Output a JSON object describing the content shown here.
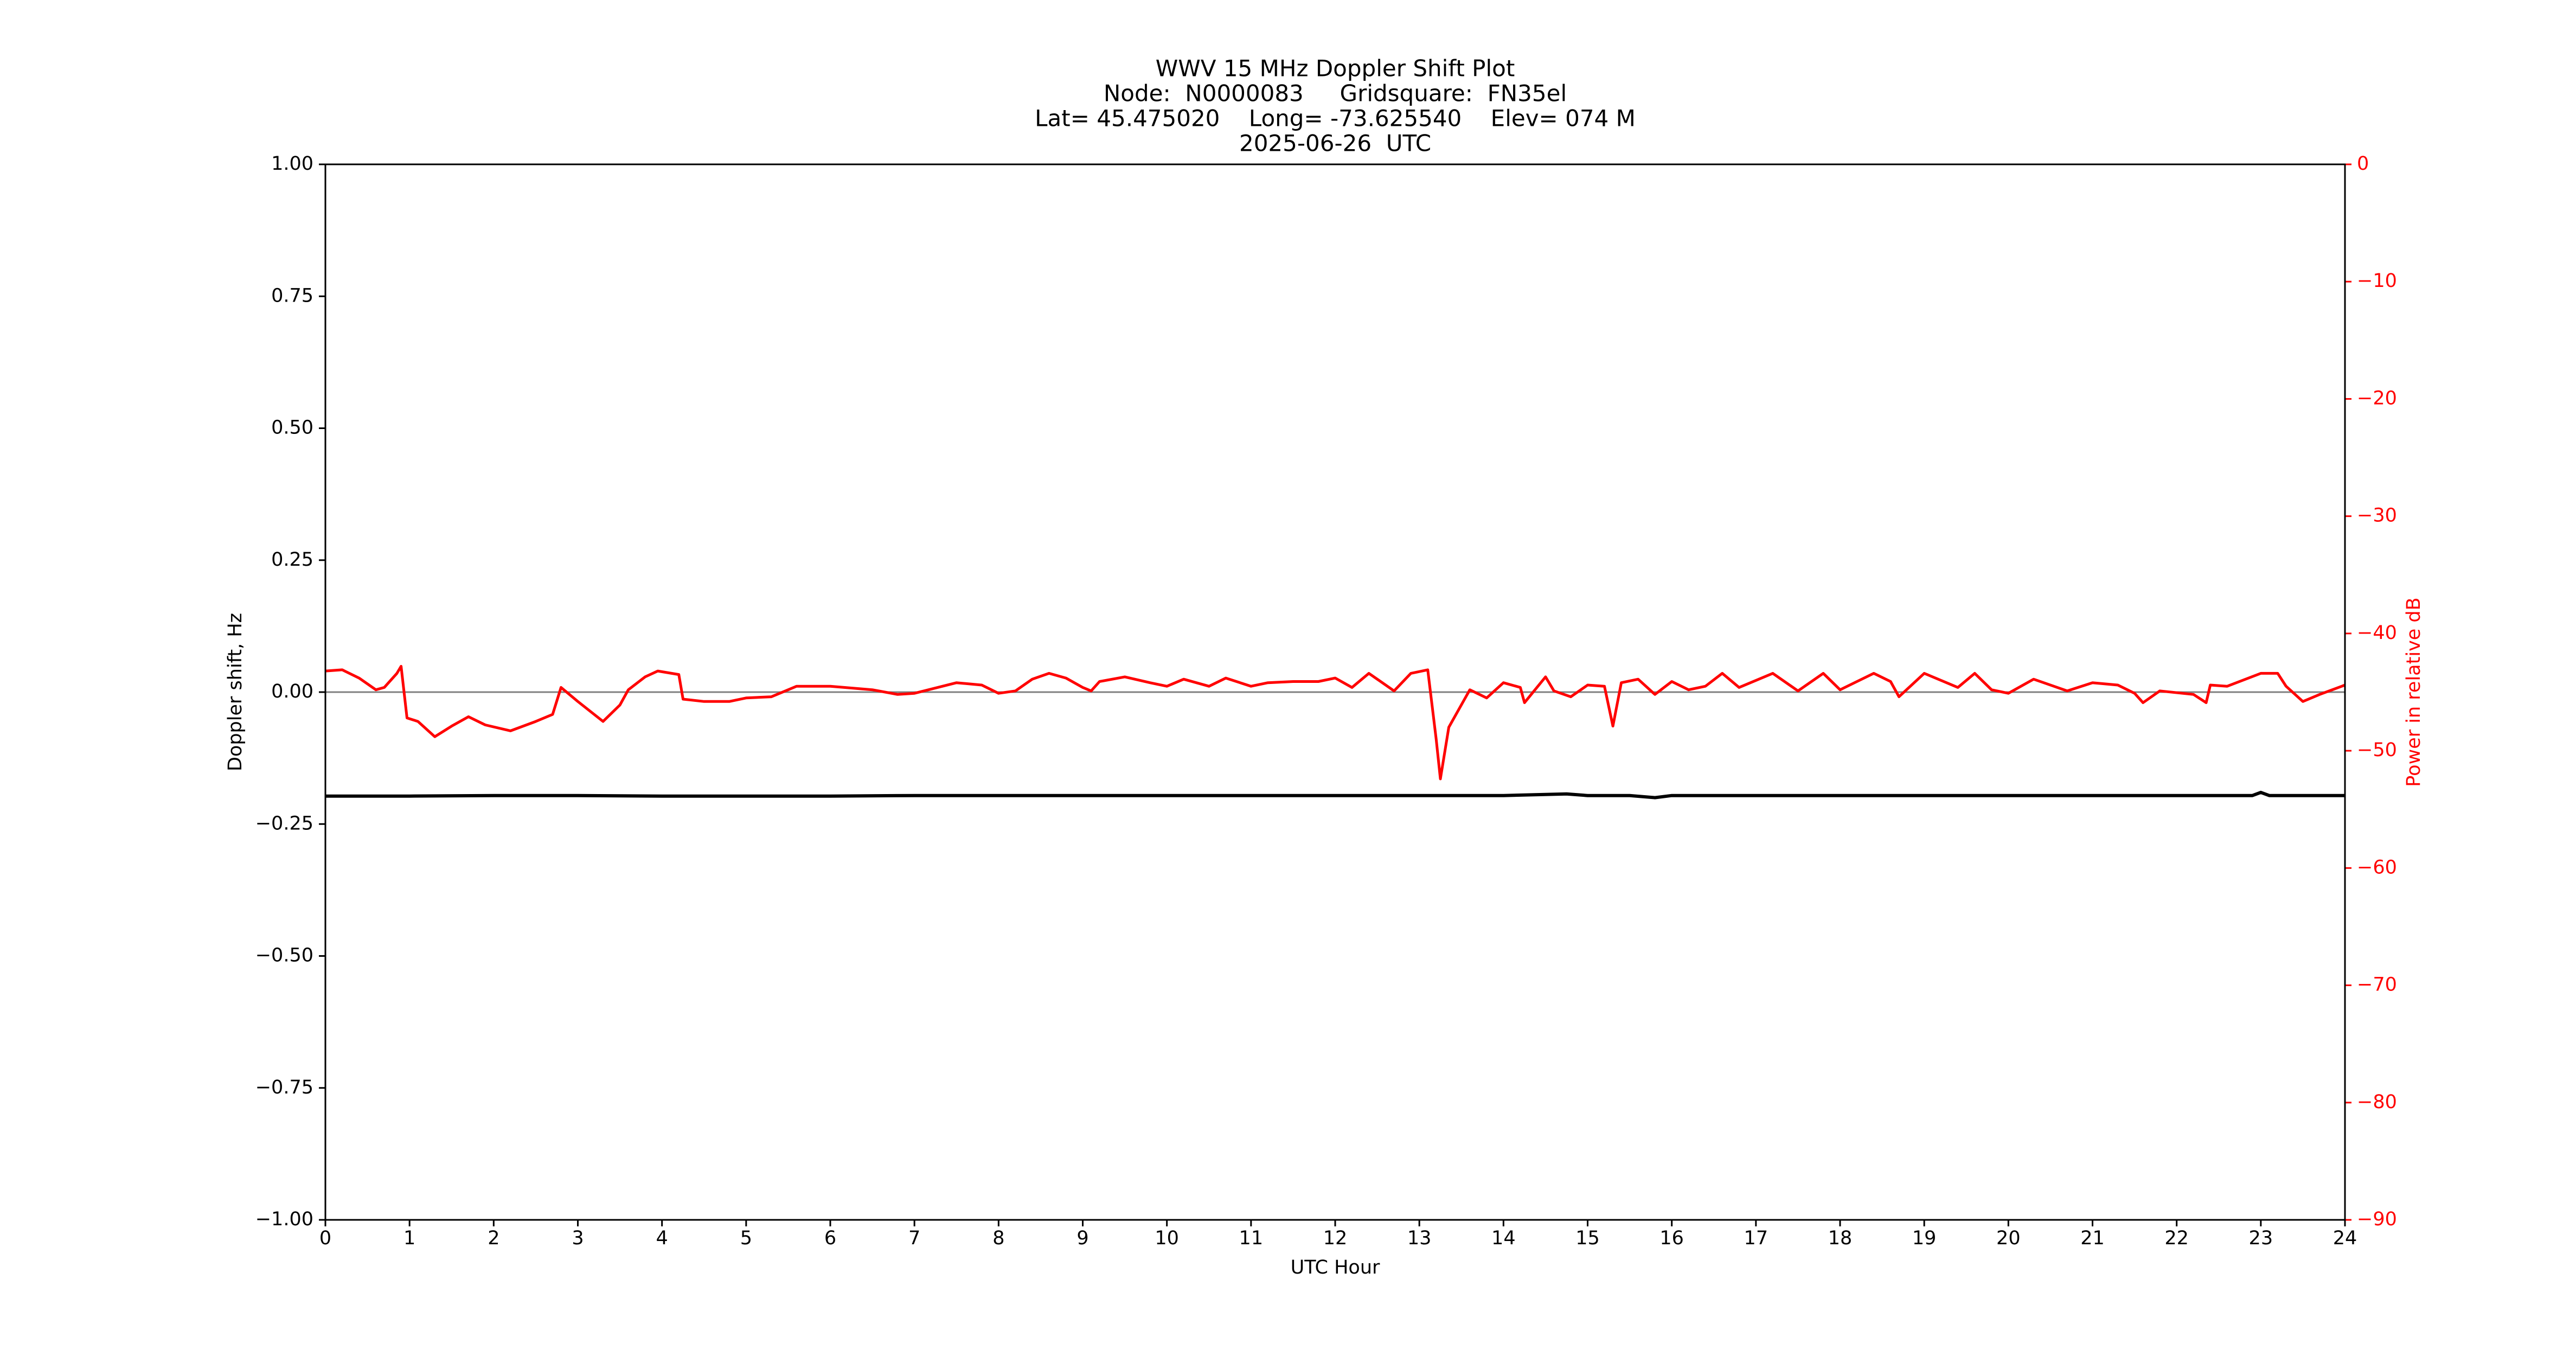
{
  "chart_data": {
    "type": "line",
    "title": [
      "WWV 15 MHz Doppler Shift Plot",
      "Node:  N0000083     Gridsquare:  FN35el",
      "Lat= 45.475020    Long= -73.625540    Elev= 074 M",
      "2025-06-26  UTC"
    ],
    "xlabel": "UTC Hour",
    "ylabel": "Doppler shift, Hz",
    "y2label": "Power in relative dB",
    "xlim": [
      0,
      24
    ],
    "xticks": [
      0,
      1,
      2,
      3,
      4,
      5,
      6,
      7,
      8,
      9,
      10,
      11,
      12,
      13,
      14,
      15,
      16,
      17,
      18,
      19,
      20,
      21,
      22,
      23,
      24
    ],
    "ylim": [
      -1,
      1
    ],
    "yticks": [
      {
        "value": -1,
        "label": "−1.00"
      },
      {
        "value": -0.75,
        "label": "−0.75"
      },
      {
        "value": -0.5,
        "label": "−0.50"
      },
      {
        "value": -0.25,
        "label": "−0.25"
      },
      {
        "value": 0,
        "label": "0.00"
      },
      {
        "value": 0.25,
        "label": "0.25"
      },
      {
        "value": 0.5,
        "label": "0.50"
      },
      {
        "value": 0.75,
        "label": "0.75"
      },
      {
        "value": 1,
        "label": "1.00"
      }
    ],
    "y2lim": [
      -90,
      0
    ],
    "y2ticks": [
      {
        "value": -90,
        "label": "−90"
      },
      {
        "value": -80,
        "label": "−80"
      },
      {
        "value": -70,
        "label": "−70"
      },
      {
        "value": -60,
        "label": "−60"
      },
      {
        "value": -50,
        "label": "−50"
      },
      {
        "value": -40,
        "label": "−40"
      },
      {
        "value": -30,
        "label": "−30"
      },
      {
        "value": -20,
        "label": "−20"
      },
      {
        "value": -10,
        "label": "−10"
      },
      0
    ],
    "y2color": "#ff0000",
    "hline": {
      "value": 0,
      "color": "#808080"
    },
    "series": [
      {
        "name": "Doppler shift",
        "color": "#000000",
        "x": [
          0,
          1,
          2,
          3,
          4,
          5,
          6,
          7,
          8,
          9,
          10,
          11,
          12,
          13,
          14,
          14.75,
          15,
          15.5,
          15.8,
          16,
          17,
          18,
          19,
          20,
          21,
          22,
          22.9,
          23,
          23.1,
          24
        ],
        "values": [
          -0.197,
          -0.197,
          -0.196,
          -0.196,
          -0.197,
          -0.197,
          -0.197,
          -0.196,
          -0.196,
          -0.196,
          -0.196,
          -0.196,
          -0.196,
          -0.196,
          -0.196,
          -0.193,
          -0.196,
          -0.196,
          -0.2,
          -0.196,
          -0.196,
          -0.196,
          -0.196,
          -0.196,
          -0.196,
          -0.196,
          -0.196,
          -0.19,
          -0.196,
          -0.196
        ]
      },
      {
        "name": "Power",
        "color": "#ff0000",
        "axis": "y2",
        "x": [
          0,
          0.2,
          0.4,
          0.6,
          0.7,
          0.85,
          0.9,
          0.97,
          1.1,
          1.3,
          1.5,
          1.7,
          1.9,
          2.2,
          2.5,
          2.7,
          2.8,
          3.0,
          3.3,
          3.5,
          3.6,
          3.8,
          3.95,
          4.2,
          4.25,
          4.5,
          4.8,
          5.0,
          5.3,
          5.6,
          6.0,
          6.5,
          6.8,
          7.0,
          7.5,
          7.8,
          8.0,
          8.2,
          8.4,
          8.6,
          8.8,
          9.0,
          9.1,
          9.2,
          9.5,
          9.8,
          10.0,
          10.2,
          10.5,
          10.7,
          11.0,
          11.2,
          11.5,
          11.8,
          12.0,
          12.2,
          12.4,
          12.7,
          12.9,
          13.1,
          13.2,
          13.25,
          13.35,
          13.6,
          13.8,
          14.0,
          14.2,
          14.25,
          14.5,
          14.6,
          14.8,
          15.0,
          15.2,
          15.3,
          15.4,
          15.6,
          15.8,
          16.0,
          16.2,
          16.4,
          16.6,
          16.8,
          17.2,
          17.5,
          17.8,
          18.0,
          18.4,
          18.6,
          18.7,
          19.0,
          19.4,
          19.6,
          19.8,
          20.0,
          20.3,
          20.7,
          21.0,
          21.3,
          21.5,
          21.6,
          21.8,
          22.2,
          22.35,
          22.4,
          22.6,
          23.0,
          23.2,
          23.3,
          23.5,
          23.7,
          24
        ],
        "values": [
          -43.2,
          -43.1,
          -43.8,
          -44.8,
          -44.6,
          -43.4,
          -42.8,
          -47.2,
          -47.5,
          -48.8,
          -47.9,
          -47.1,
          -47.8,
          -48.3,
          -47.5,
          -46.9,
          -44.6,
          -45.8,
          -47.5,
          -46.1,
          -44.8,
          -43.7,
          -43.2,
          -43.5,
          -45.6,
          -45.8,
          -45.8,
          -45.5,
          -45.4,
          -44.5,
          -44.5,
          -44.8,
          -45.2,
          -45.1,
          -44.2,
          -44.4,
          -45.1,
          -44.9,
          -43.9,
          -43.4,
          -43.8,
          -44.6,
          -44.9,
          -44.1,
          -43.7,
          -44.2,
          -44.5,
          -43.9,
          -44.5,
          -43.8,
          -44.5,
          -44.2,
          -44.1,
          -44.1,
          -43.8,
          -44.6,
          -43.4,
          -44.9,
          -43.4,
          -43.1,
          -49.0,
          -52.4,
          -48.0,
          -44.8,
          -45.5,
          -44.2,
          -44.6,
          -45.9,
          -43.7,
          -44.9,
          -45.4,
          -44.4,
          -44.5,
          -47.9,
          -44.2,
          -43.9,
          -45.2,
          -44.1,
          -44.8,
          -44.5,
          -43.4,
          -44.6,
          -43.4,
          -44.9,
          -43.4,
          -44.8,
          -43.4,
          -44.1,
          -45.4,
          -43.4,
          -44.6,
          -43.4,
          -44.8,
          -45.1,
          -43.9,
          -44.9,
          -44.2,
          -44.4,
          -45.1,
          -45.9,
          -44.9,
          -45.2,
          -45.9,
          -44.4,
          -44.5,
          -43.4,
          -43.4,
          -44.5,
          -45.8,
          -45.2,
          -44.4
        ]
      }
    ]
  }
}
